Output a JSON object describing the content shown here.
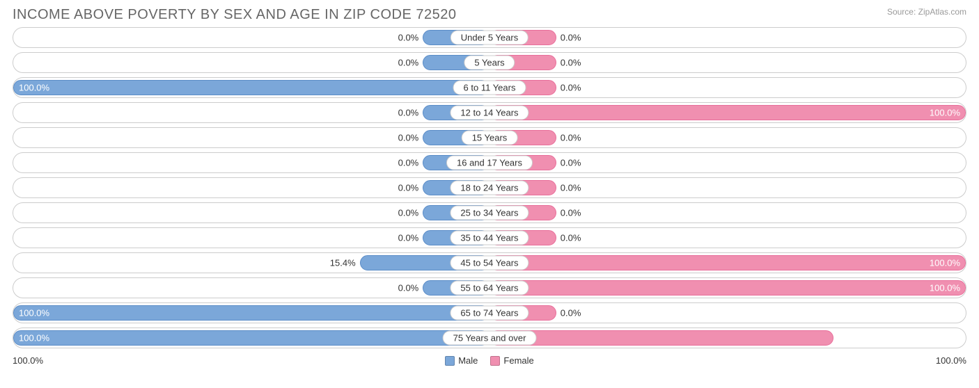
{
  "title": "INCOME ABOVE POVERTY BY SEX AND AGE IN ZIP CODE 72520",
  "source": "Source: ZipAtlas.com",
  "chart": {
    "type": "pyramid-bar",
    "male_color": "#7ba7d9",
    "male_border": "#5a8cc7",
    "female_color": "#f08fb0",
    "female_border": "#e86e9a",
    "row_border": "#cccccc",
    "background": "#ffffff",
    "default_bar_min_pct": 14,
    "categories": [
      {
        "label": "Under 5 Years",
        "male": 0.0,
        "female": 0.0
      },
      {
        "label": "5 Years",
        "male": 0.0,
        "female": 0.0
      },
      {
        "label": "6 to 11 Years",
        "male": 100.0,
        "female": 0.0
      },
      {
        "label": "12 to 14 Years",
        "male": 0.0,
        "female": 100.0
      },
      {
        "label": "15 Years",
        "male": 0.0,
        "female": 0.0
      },
      {
        "label": "16 and 17 Years",
        "male": 0.0,
        "female": 0.0
      },
      {
        "label": "18 to 24 Years",
        "male": 0.0,
        "female": 0.0
      },
      {
        "label": "25 to 34 Years",
        "male": 0.0,
        "female": 0.0
      },
      {
        "label": "35 to 44 Years",
        "male": 0.0,
        "female": 0.0
      },
      {
        "label": "45 to 54 Years",
        "male": 15.4,
        "female": 100.0
      },
      {
        "label": "55 to 64 Years",
        "male": 0.0,
        "female": 100.0
      },
      {
        "label": "65 to 74 Years",
        "male": 100.0,
        "female": 0.0
      },
      {
        "label": "75 Years and over",
        "male": 100.0,
        "female": 67.7
      }
    ]
  },
  "axis": {
    "left": "100.0%",
    "right": "100.0%"
  },
  "legend": {
    "male": "Male",
    "female": "Female"
  }
}
